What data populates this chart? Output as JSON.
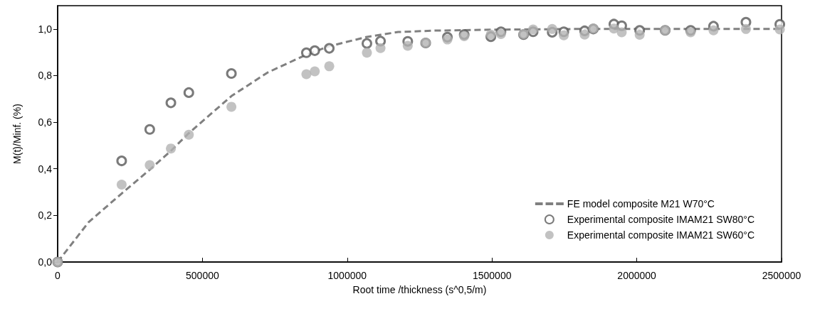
{
  "chart_data": {
    "type": "scatter",
    "xlabel": "Root time /thickness (s^0,5/m)",
    "ylabel": "M(t)/Minf. (%)",
    "xlim": [
      0,
      2500000
    ],
    "xticks": [
      0,
      500000,
      1000000,
      1500000,
      2000000,
      2500000
    ],
    "ylim": [
      0,
      1.1
    ],
    "yticks": [
      {
        "value": 0,
        "label": "0,0"
      },
      {
        "value": 0.2,
        "label": "0,2"
      },
      {
        "value": 0.4,
        "label": "0,4"
      },
      {
        "value": 0.6,
        "label": "0,6"
      },
      {
        "value": 0.8,
        "label": "0,8"
      },
      {
        "value": 1.0,
        "label": "1,0"
      }
    ],
    "grid": false,
    "legend": "bottom right",
    "marker": "circle",
    "series": [
      {
        "name": "FE model composite M21 W70°C",
        "type": "line",
        "line_style": "dashed",
        "marker": "none",
        "color": "#808080",
        "x": [
          0,
          107000,
          221000,
          318000,
          391000,
          453000,
          600000,
          725000,
          859000,
          938000,
          1068000,
          1176000,
          1300000,
          1500000,
          1800000,
          2100000,
          2500000
        ],
        "values": [
          0,
          0.171,
          0.294,
          0.396,
          0.477,
          0.553,
          0.712,
          0.813,
          0.89,
          0.926,
          0.966,
          0.987,
          0.993,
          0.997,
          1.0,
          1.0,
          1.0
        ]
      },
      {
        "name": "Experimental composite IMAM21 SW80°C",
        "type": "scatter",
        "color": "#595959",
        "x": [
          0,
          221000,
          318000,
          391000,
          453000,
          600000,
          859000,
          888000,
          938000,
          1068000,
          1115000,
          1209000,
          1271000,
          1346000,
          1404000,
          1496000,
          1531000,
          1609000,
          1642000,
          1708000,
          1748000,
          1820000,
          1850000,
          1921000,
          1948000,
          2010000,
          2098000,
          2186000,
          2265000,
          2377000,
          2494000
        ],
        "values": [
          0,
          0.434,
          0.569,
          0.683,
          0.727,
          0.809,
          0.898,
          0.907,
          0.917,
          0.938,
          0.948,
          0.947,
          0.94,
          0.965,
          0.976,
          0.967,
          0.988,
          0.976,
          0.988,
          0.986,
          0.988,
          0.992,
          1.0,
          1.021,
          1.014,
          0.994,
          0.994,
          0.994,
          1.012,
          1.029,
          1.02
        ]
      },
      {
        "name": "Experimental composite IMAM21 SW60°C",
        "color": "#b3b3b3",
        "x": [
          0,
          221000,
          318000,
          391000,
          453000,
          600000,
          859000,
          888000,
          938000,
          1068000,
          1115000,
          1209000,
          1271000,
          1346000,
          1404000,
          1496000,
          1531000,
          1609000,
          1642000,
          1708000,
          1748000,
          1820000,
          1850000,
          1921000,
          1948000,
          2010000,
          2098000,
          2186000,
          2265000,
          2377000,
          2494000
        ],
        "values": [
          0,
          0.332,
          0.416,
          0.487,
          0.546,
          0.666,
          0.806,
          0.818,
          0.84,
          0.898,
          0.918,
          0.928,
          0.941,
          0.955,
          0.969,
          0.976,
          0.978,
          0.978,
          0.998,
          1.0,
          0.973,
          0.976,
          1.002,
          1.002,
          0.986,
          0.975,
          0.994,
          0.986,
          0.994,
          1.0,
          0.998
        ]
      }
    ]
  }
}
